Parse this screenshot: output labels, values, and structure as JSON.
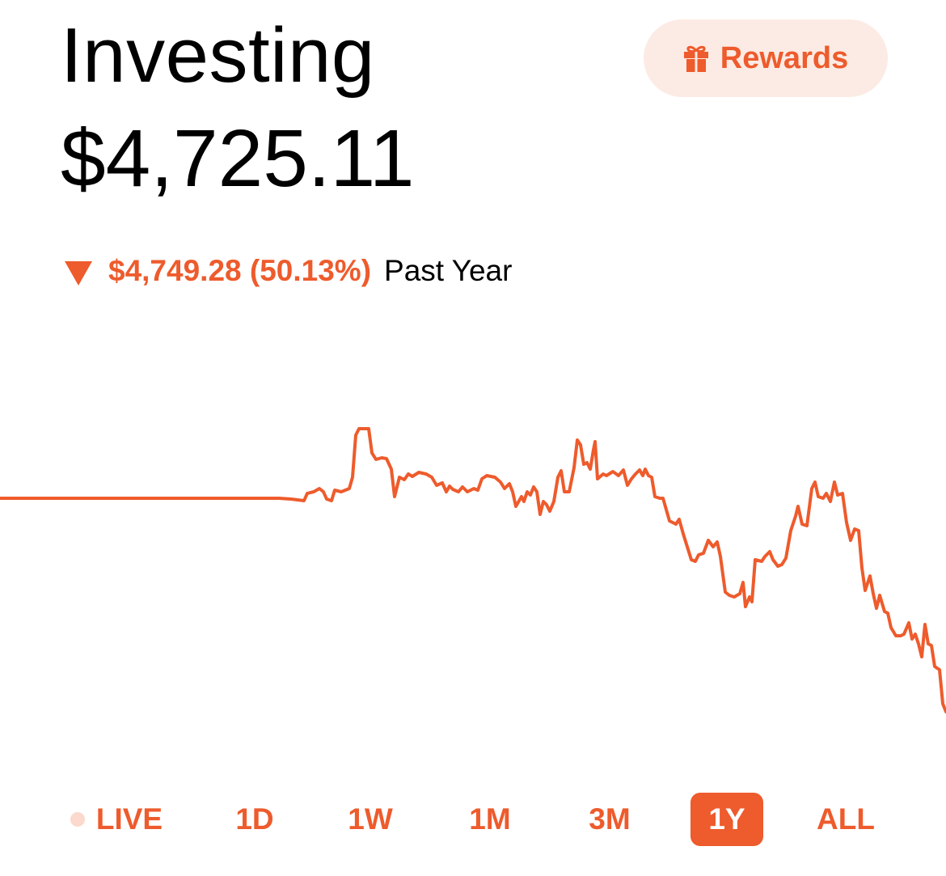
{
  "header": {
    "title": "Investing",
    "rewards_label": "Rewards",
    "rewards_icon": "gift-icon"
  },
  "portfolio": {
    "balance": "$4,725.11",
    "change_direction_icon": "triangle-down-icon",
    "change_value": "$4,749.28 (50.13%)",
    "change_period": "Past Year"
  },
  "colors": {
    "accent": "#ee5b2c",
    "accent_light": "#fcebe4",
    "live_dot": "#fbd9cc",
    "text": "#000000"
  },
  "ranges": [
    {
      "label": "LIVE",
      "active": false,
      "has_dot": true
    },
    {
      "label": "1D",
      "active": false
    },
    {
      "label": "1W",
      "active": false
    },
    {
      "label": "1M",
      "active": false
    },
    {
      "label": "3M",
      "active": false
    },
    {
      "label": "1Y",
      "active": true
    },
    {
      "label": "ALL",
      "active": false
    }
  ]
}
